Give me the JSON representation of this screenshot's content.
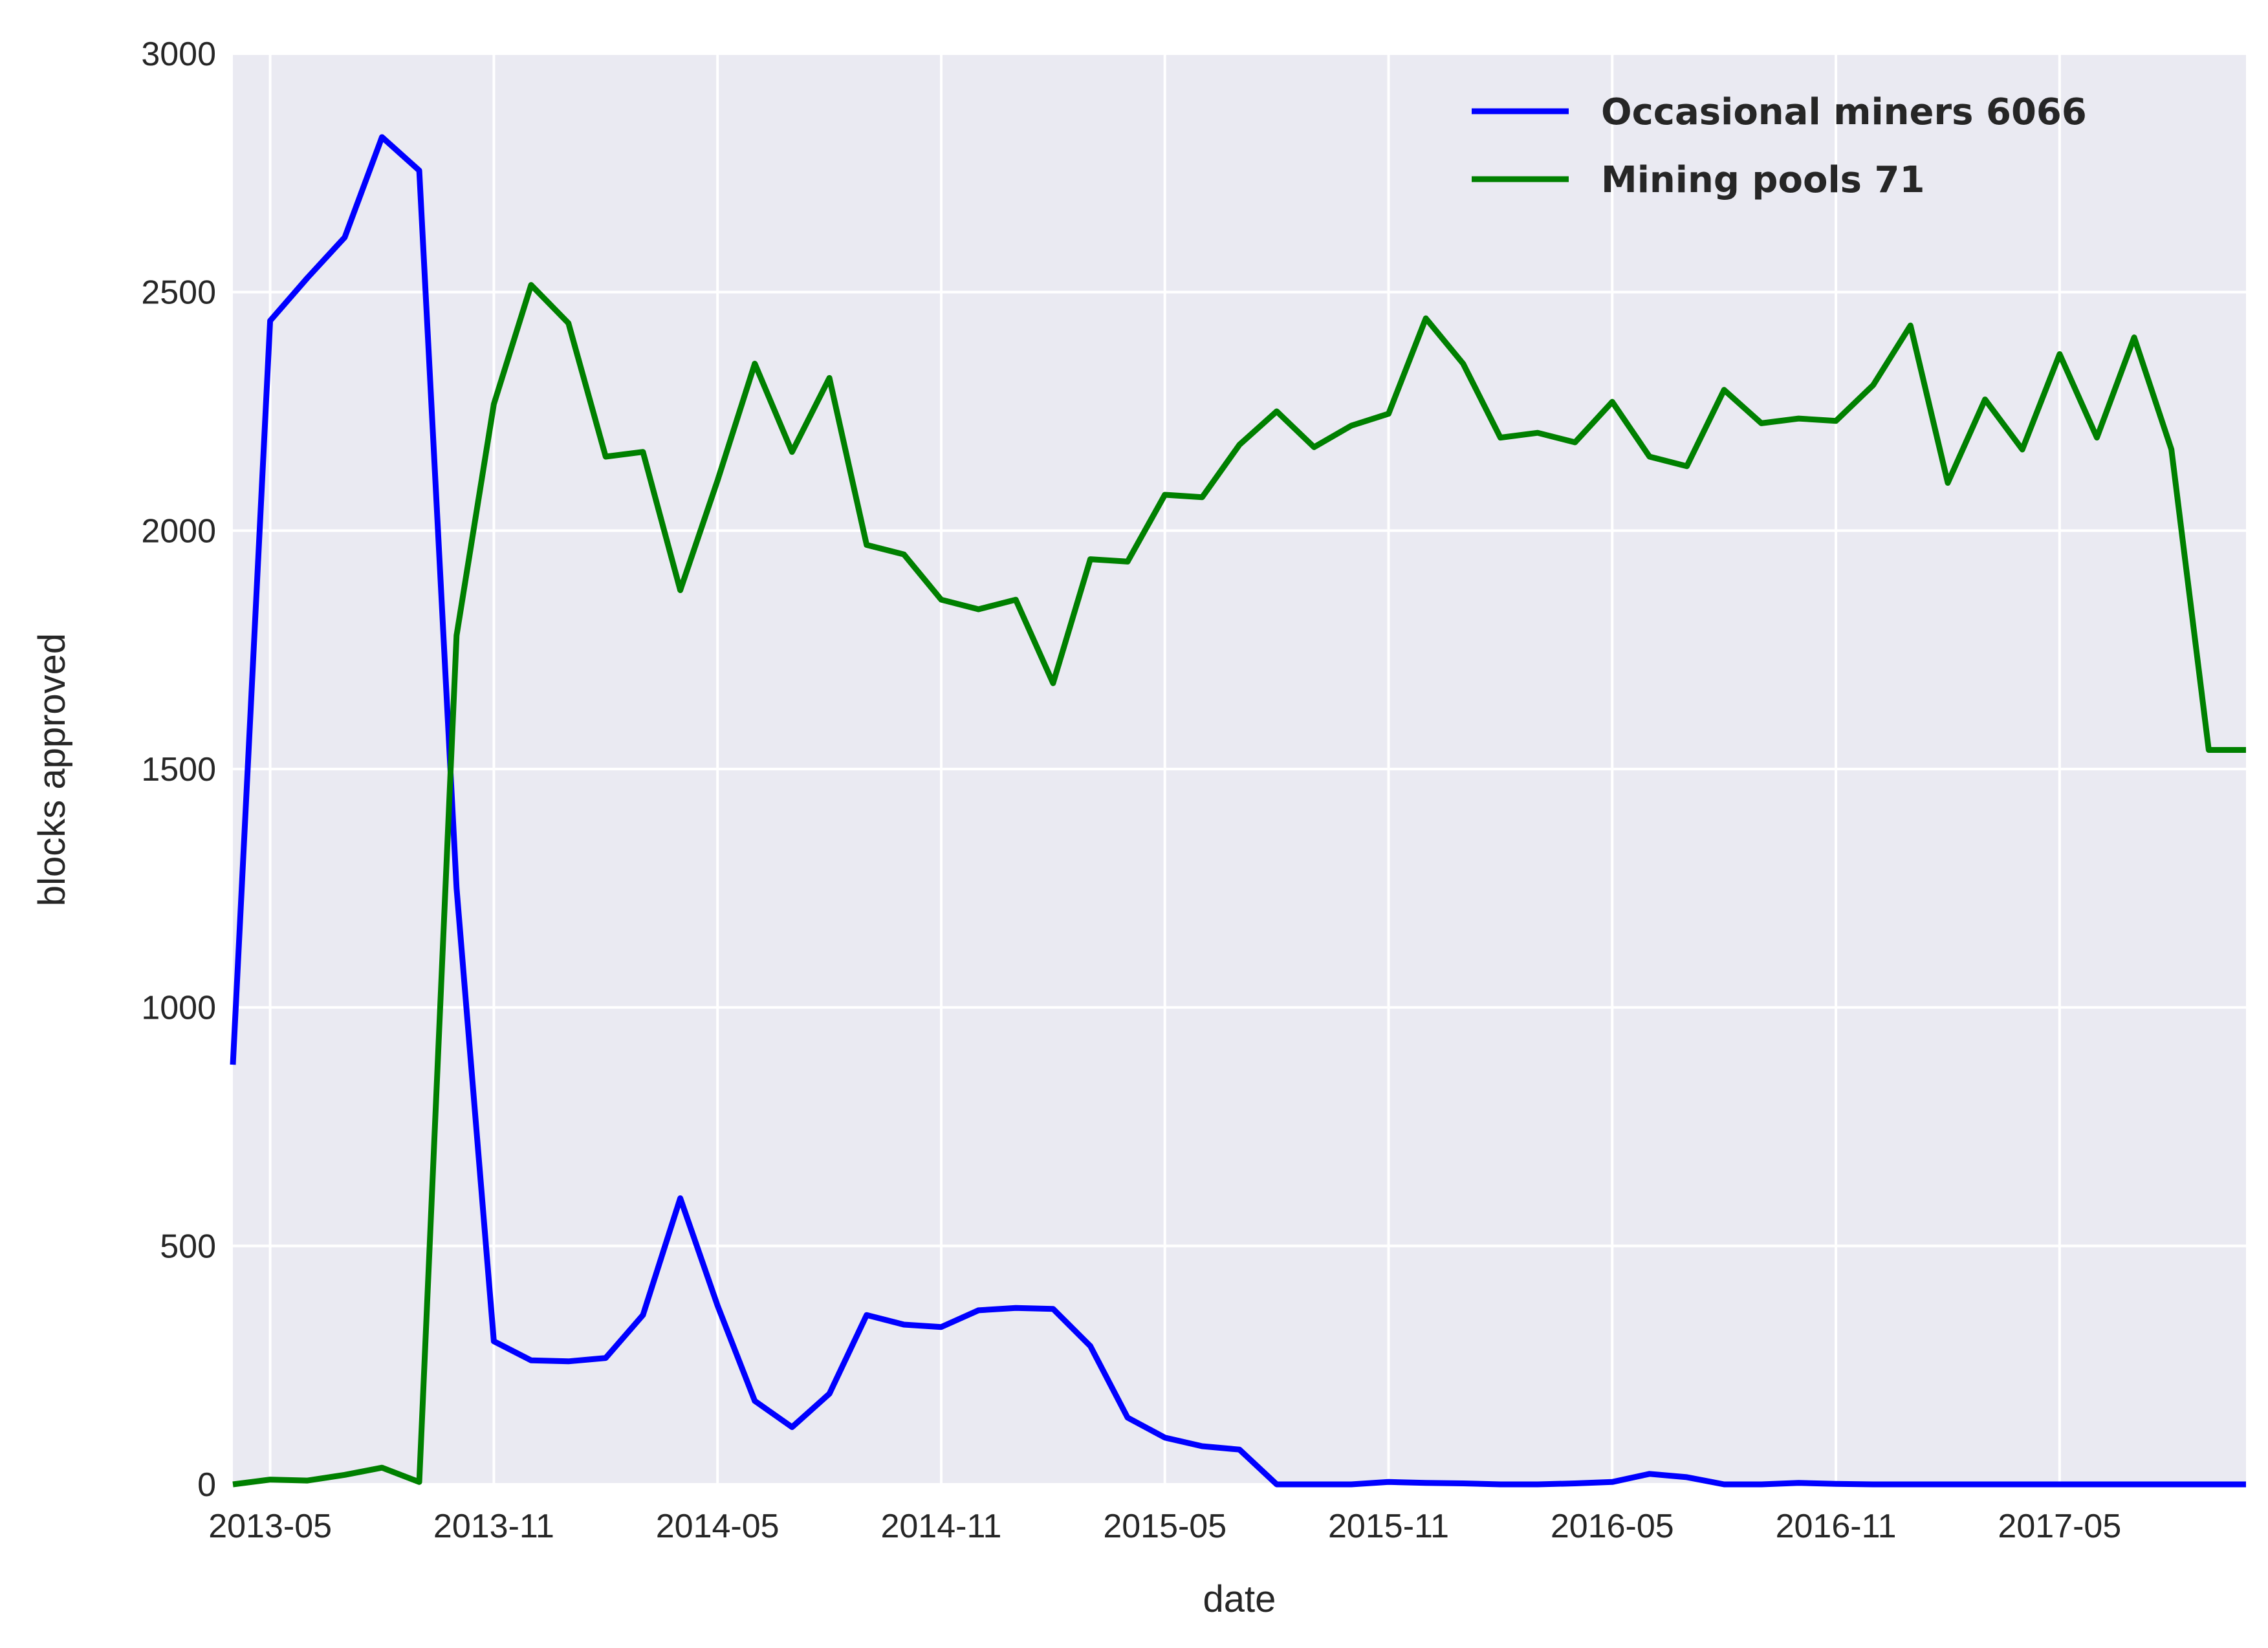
{
  "chart_data": {
    "type": "line",
    "xlabel": "date",
    "ylabel": "blocks approved",
    "xlim": [
      "2013-04",
      "2017-10"
    ],
    "ylim": [
      0,
      3000
    ],
    "x_ticks": [
      "2013-05",
      "2013-11",
      "2014-05",
      "2014-11",
      "2015-05",
      "2015-11",
      "2016-05",
      "2016-11",
      "2017-05"
    ],
    "y_ticks": [
      0,
      500,
      1000,
      1500,
      2000,
      2500,
      3000
    ],
    "grid": true,
    "legend_position": "top-right",
    "x": [
      "2013-04",
      "2013-05",
      "2013-06",
      "2013-07",
      "2013-08",
      "2013-09",
      "2013-10",
      "2013-11",
      "2013-12",
      "2014-01",
      "2014-02",
      "2014-03",
      "2014-04",
      "2014-05",
      "2014-06",
      "2014-07",
      "2014-08",
      "2014-09",
      "2014-10",
      "2014-11",
      "2014-12",
      "2015-01",
      "2015-02",
      "2015-03",
      "2015-04",
      "2015-05",
      "2015-06",
      "2015-07",
      "2015-08",
      "2015-09",
      "2015-10",
      "2015-11",
      "2015-12",
      "2016-01",
      "2016-02",
      "2016-03",
      "2016-04",
      "2016-05",
      "2016-06",
      "2016-07",
      "2016-08",
      "2016-09",
      "2016-10",
      "2016-11",
      "2016-12",
      "2017-01",
      "2017-02",
      "2017-03",
      "2017-04",
      "2017-05",
      "2017-06",
      "2017-07",
      "2017-08",
      "2017-09",
      "2017-10"
    ],
    "series": [
      {
        "name": "Occasional miners 6066",
        "color": "#0000ff",
        "values": [
          880,
          2440,
          2530,
          2615,
          2825,
          2755,
          1250,
          300,
          260,
          258,
          265,
          355,
          600,
          375,
          175,
          120,
          190,
          355,
          335,
          330,
          365,
          370,
          368,
          290,
          140,
          98,
          80,
          73,
          0,
          0,
          0,
          5,
          3,
          2,
          0,
          0,
          2,
          5,
          22,
          15,
          0,
          0,
          3,
          1,
          0,
          0,
          0,
          0,
          0,
          0,
          0,
          0,
          0,
          0,
          0
        ]
      },
      {
        "name": "Mining pools 71",
        "color": "#008000",
        "values": [
          0,
          10,
          8,
          20,
          35,
          5,
          1780,
          2265,
          2515,
          2435,
          2155,
          2165,
          1875,
          2105,
          2350,
          2165,
          2320,
          1970,
          1950,
          1855,
          1835,
          1855,
          1680,
          1940,
          1935,
          2075,
          2070,
          2180,
          2250,
          2175,
          2220,
          2245,
          2445,
          2350,
          2195,
          2205,
          2185,
          2270,
          2155,
          2135,
          2295,
          2225,
          2235,
          2230,
          2305,
          2430,
          2100,
          2275,
          2170,
          2370,
          2195,
          2405,
          2170,
          1540,
          1540
        ]
      }
    ]
  }
}
